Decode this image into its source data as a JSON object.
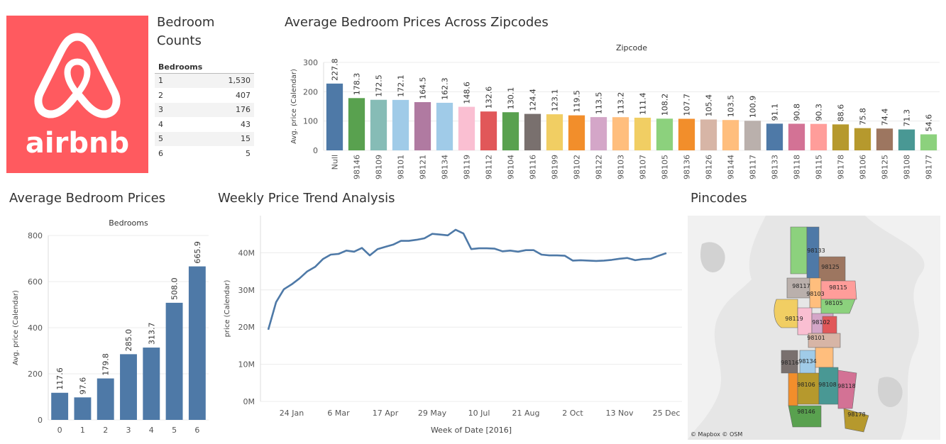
{
  "logo": {
    "wordmark": "airbnb",
    "background": "#FF5A5F"
  },
  "bedroom_counts": {
    "title_line1": "Bedroom",
    "title_line2": "Counts",
    "column_header": "Bedrooms",
    "rows": [
      {
        "bedrooms": "1",
        "count": "1,530"
      },
      {
        "bedrooms": "2",
        "count": "407"
      },
      {
        "bedrooms": "3",
        "count": "176"
      },
      {
        "bedrooms": "4",
        "count": "43"
      },
      {
        "bedrooms": "5",
        "count": "15"
      },
      {
        "bedrooms": "6",
        "count": "5"
      }
    ]
  },
  "titles": {
    "zip_chart": "Average Bedroom Prices Across Zipcodes",
    "bedroom_chart": "Average Bedroom Prices",
    "weekly_chart": "Weekly Price Trend Analysis",
    "map": "Pincodes"
  },
  "chart_data": [
    {
      "type": "bar",
      "title": "Average Bedroom Prices Across Zipcodes",
      "header": "Zipcode",
      "ylabel": "Avg. price (Calendar)",
      "ylim": [
        0,
        300
      ],
      "yticks": [
        0,
        100,
        200,
        300
      ],
      "categories": [
        "Null",
        "98146",
        "98109",
        "98101",
        "98121",
        "98134",
        "98119",
        "98112",
        "98104",
        "98116",
        "98199",
        "98102",
        "98122",
        "98103",
        "98107",
        "98105",
        "98136",
        "98126",
        "98144",
        "98117",
        "98133",
        "98118",
        "98115",
        "98178",
        "98106",
        "98125",
        "98108",
        "98177"
      ],
      "values": [
        227.8,
        178.3,
        172.5,
        172.1,
        164.5,
        162.3,
        148.6,
        132.6,
        130.1,
        124.4,
        123.1,
        119.5,
        113.5,
        113.2,
        111.4,
        108.2,
        107.7,
        105.4,
        103.5,
        100.9,
        91.1,
        90.8,
        90.3,
        88.6,
        75.8,
        74.4,
        71.3,
        54.6
      ],
      "labels": [
        "227.8",
        "178.3",
        "172.5",
        "172.1",
        "164.5",
        "162.3",
        "148.6",
        "132.6",
        "130.1",
        "124.4",
        "123.1",
        "119.5",
        "113.5",
        "113.2",
        "111.4",
        "108.2",
        "107.7",
        "105.4",
        "103.5",
        "100.9",
        "91.1",
        "90.8",
        "90.3",
        "88.6",
        "75.8",
        "74.4",
        "71.3",
        "54.6"
      ],
      "colors": [
        "#4E79A7",
        "#59A14F",
        "#86BCB6",
        "#A0CBE8",
        "#B07AA1",
        "#A0CBE8",
        "#FABFD2",
        "#E15759",
        "#59A14F",
        "#79706E",
        "#F1CE63",
        "#F28E2B",
        "#D4A6C8",
        "#FFBE7D",
        "#F1CE63",
        "#8CD17D",
        "#F28E2B",
        "#D7B5A6",
        "#FFBE7D",
        "#BAB0AC",
        "#4E79A7",
        "#D37295",
        "#FF9D9A",
        "#B6992D",
        "#B6992D",
        "#9D7660",
        "#499894",
        "#8CD17D"
      ]
    },
    {
      "type": "bar",
      "title": "Average Bedroom Prices",
      "header": "Bedrooms",
      "ylabel": "Avg. price (Calendar)",
      "ylim": [
        0,
        800
      ],
      "yticks": [
        0,
        200,
        400,
        600,
        800
      ],
      "categories": [
        "0",
        "1",
        "2",
        "3",
        "4",
        "5",
        "6"
      ],
      "values": [
        117.6,
        97.6,
        179.8,
        285.0,
        313.7,
        508.0,
        665.9
      ],
      "labels": [
        "117.6",
        "97.6",
        "179.8",
        "285.0",
        "313.7",
        "508.0",
        "665.9"
      ],
      "color": "#4E79A7"
    },
    {
      "type": "line",
      "title": "Weekly Price Trend Analysis",
      "xlabel": "Week of Date [2016]",
      "ylabel": "price (Calendar)",
      "ylim": [
        0,
        50000000
      ],
      "yticks": [
        0,
        10000000,
        20000000,
        30000000,
        40000000
      ],
      "ytick_labels": [
        "0M",
        "10M",
        "20M",
        "30M",
        "40M"
      ],
      "xticks": [
        "2016-01-24",
        "2016-03-06",
        "2016-04-17",
        "2016-05-29",
        "2016-07-10",
        "2016-08-21",
        "2016-10-02",
        "2016-11-13",
        "2016-12-25"
      ],
      "xtick_labels": [
        "24 Jan",
        "6 Mar",
        "17 Apr",
        "29 May",
        "10 Jul",
        "21 Aug",
        "2 Oct",
        "13 Nov",
        "25 Dec"
      ],
      "xlim": [
        "2015-12-27",
        "2017-01-08"
      ],
      "color": "#4E79A7",
      "series": [
        {
          "x": [
            "2016-01-03",
            "2016-01-10",
            "2016-01-17",
            "2016-01-24",
            "2016-01-31",
            "2016-02-07",
            "2016-02-14",
            "2016-02-21",
            "2016-02-28",
            "2016-03-06",
            "2016-03-13",
            "2016-03-20",
            "2016-03-27",
            "2016-04-03",
            "2016-04-10",
            "2016-04-17",
            "2016-04-24",
            "2016-05-01",
            "2016-05-08",
            "2016-05-15",
            "2016-05-22",
            "2016-05-29",
            "2016-06-05",
            "2016-06-12",
            "2016-06-19",
            "2016-06-26",
            "2016-07-03",
            "2016-07-10",
            "2016-07-17",
            "2016-07-24",
            "2016-07-31",
            "2016-08-07",
            "2016-08-14",
            "2016-08-21",
            "2016-08-28",
            "2016-09-04",
            "2016-09-11",
            "2016-09-18",
            "2016-09-25",
            "2016-10-02",
            "2016-10-09",
            "2016-10-16",
            "2016-10-23",
            "2016-10-30",
            "2016-11-06",
            "2016-11-13",
            "2016-11-20",
            "2016-11-27",
            "2016-12-04",
            "2016-12-11",
            "2016-12-18",
            "2016-12-25"
          ],
          "y": [
            19300000,
            26700000,
            30200000,
            31500000,
            33100000,
            35000000,
            36200000,
            38300000,
            39500000,
            39700000,
            40600000,
            40300000,
            41300000,
            39300000,
            41000000,
            41600000,
            42200000,
            43200000,
            43200000,
            43500000,
            43900000,
            45100000,
            44900000,
            44700000,
            46200000,
            45200000,
            41000000,
            41200000,
            41200000,
            41100000,
            40400000,
            40600000,
            40300000,
            40700000,
            40700000,
            39500000,
            39300000,
            39300000,
            39200000,
            37900000,
            38000000,
            37900000,
            37800000,
            37900000,
            38100000,
            38400000,
            38600000,
            38000000,
            38300000,
            38400000,
            39200000,
            39900000
          ]
        }
      ]
    }
  ],
  "map": {
    "attribution": "© Mapbox © OSM",
    "labels": [
      "98133",
      "98125",
      "98117",
      "98103",
      "98115",
      "98105",
      "98119",
      "98102",
      "98101",
      "98116",
      "98134",
      "98106",
      "98108",
      "98118",
      "98146",
      "98178"
    ]
  }
}
